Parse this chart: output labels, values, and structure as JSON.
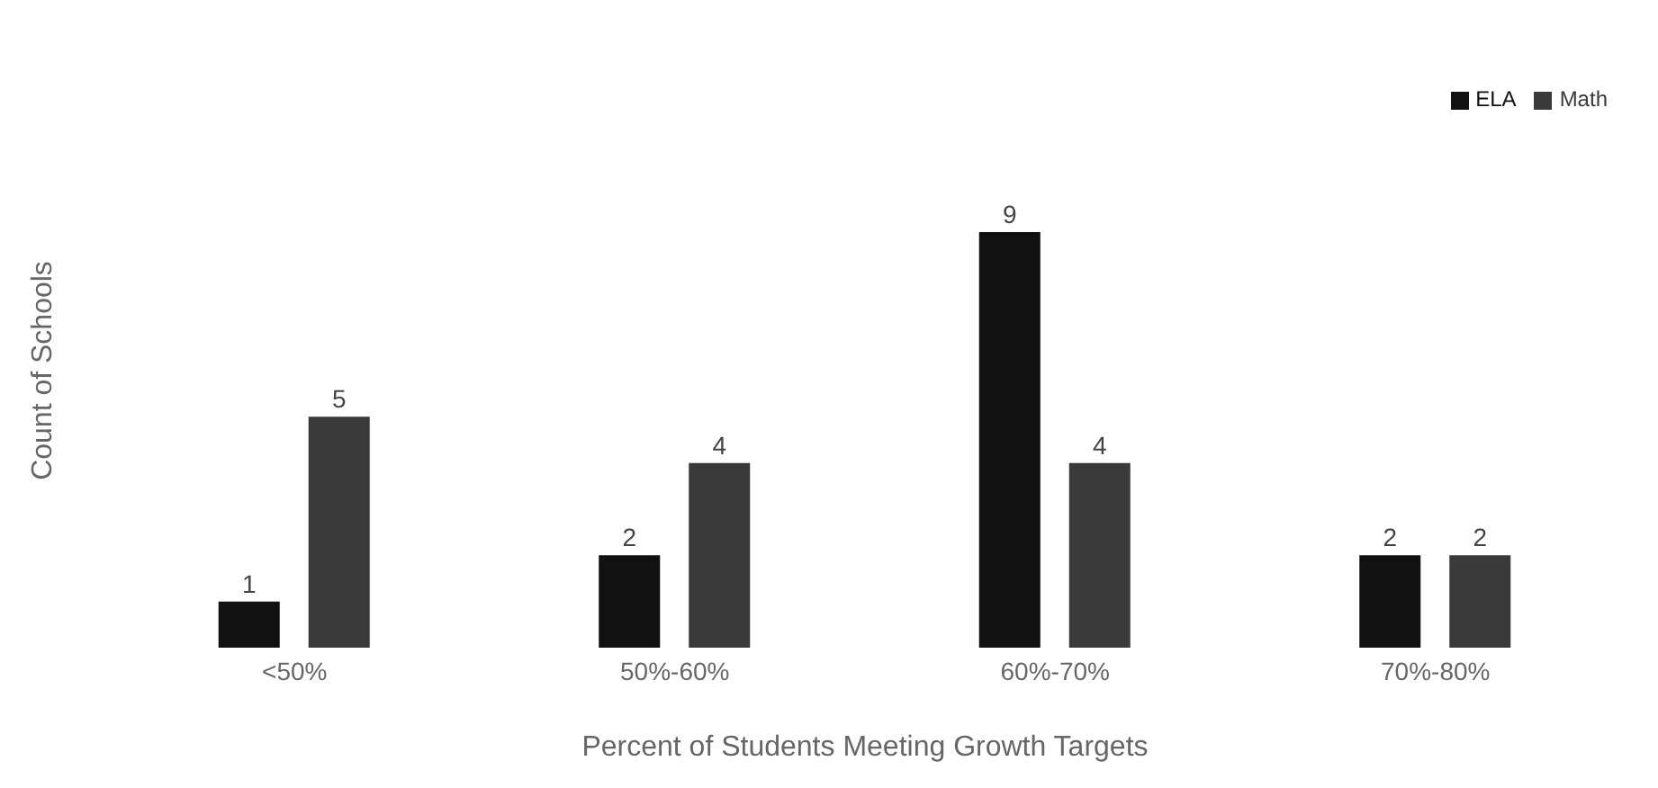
{
  "chart_data": {
    "type": "bar",
    "xlabel": "Percent of Students Meeting Growth Targets",
    "ylabel": "Count of Schools",
    "categories": [
      "<50%",
      "50%-60%",
      "60%-70%",
      "70%-80%"
    ],
    "series": [
      {
        "name": "ELA",
        "color": "#111111",
        "values": [
          1,
          2,
          9,
          2
        ]
      },
      {
        "name": "Math",
        "color": "#3a3a3a",
        "values": [
          5,
          4,
          4,
          2
        ]
      }
    ],
    "data_labels": true,
    "legend": "top right",
    "grid": false
  }
}
